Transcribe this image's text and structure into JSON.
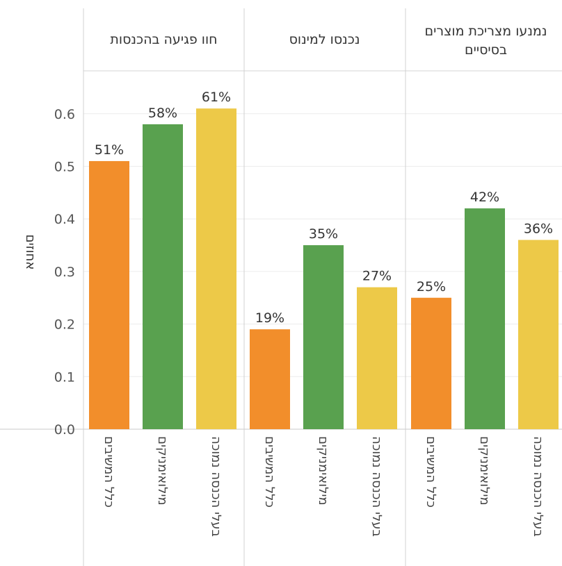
{
  "chart_data": {
    "type": "bar",
    "ylabel": "אחוזים",
    "ylim": [
      0,
      0.7
    ],
    "yticks": [
      "0.0",
      "0.1",
      "0.2",
      "0.3",
      "0.4",
      "0.5",
      "0.6"
    ],
    "grid": true,
    "panels": [
      {
        "title": [
          "חוו פגיעה בהכנסות"
        ],
        "bars": [
          {
            "category": "כלל המשיבים",
            "value": 0.51,
            "label": "51%",
            "color": "#f28e2b"
          },
          {
            "category": "מילואימניקים",
            "value": 0.58,
            "label": "58%",
            "color": "#59a14f"
          },
          {
            "category": "בעלי הכנסה נמוכה",
            "value": 0.61,
            "label": "61%",
            "color": "#edc948"
          }
        ]
      },
      {
        "title": [
          "נכנסו למינוס"
        ],
        "bars": [
          {
            "category": "כלל המשיבים",
            "value": 0.19,
            "label": "19%",
            "color": "#f28e2b"
          },
          {
            "category": "מילואימניקים",
            "value": 0.35,
            "label": "35%",
            "color": "#59a14f"
          },
          {
            "category": "בעלי הכנסה נמוכה",
            "value": 0.27,
            "label": "27%",
            "color": "#edc948"
          }
        ]
      },
      {
        "title": [
          "נמנעו מצריכת מוצרים",
          "בסיסיים"
        ],
        "bars": [
          {
            "category": "כלל המשיבים",
            "value": 0.25,
            "label": "25%",
            "color": "#f28e2b"
          },
          {
            "category": "מילואימניקים",
            "value": 0.42,
            "label": "42%",
            "color": "#59a14f"
          },
          {
            "category": "בעלי הכנסה נמוכה",
            "value": 0.36,
            "label": "36%",
            "color": "#edc948"
          }
        ]
      }
    ]
  }
}
